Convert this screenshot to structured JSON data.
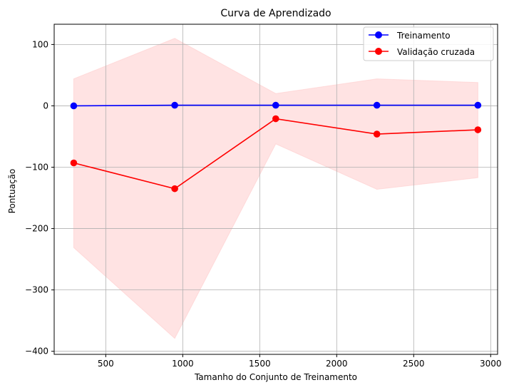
{
  "chart_data": {
    "type": "line",
    "title": "Curva de Aprendizado",
    "xlabel": "Tamanho do Conjunto de Treinamento",
    "ylabel": "Pontuação",
    "xlim": [
      165,
      3045
    ],
    "ylim": [
      -405,
      133
    ],
    "x_ticks": [
      500,
      1000,
      1500,
      2000,
      2500,
      3000
    ],
    "y_ticks": [
      -400,
      -300,
      -200,
      -100,
      0,
      100
    ],
    "grid": true,
    "legend_position": "top-right",
    "x": [
      292,
      948,
      1604,
      2261,
      2917
    ],
    "series": [
      {
        "name": "Treinamento",
        "color": "#0000ff",
        "values": [
          0,
          1,
          1,
          1,
          1
        ],
        "band_lower": [
          0,
          1,
          1,
          1,
          1
        ],
        "band_upper": [
          0,
          1,
          1,
          1,
          1
        ]
      },
      {
        "name": "Validação cruzada",
        "color": "#ff0000",
        "values": [
          -93,
          -135,
          -21,
          -46,
          -39
        ],
        "band_lower": [
          -231,
          -379,
          -62,
          -136,
          -117
        ],
        "band_upper": [
          44,
          110,
          20,
          44,
          38
        ]
      }
    ],
    "band_color": "#ffcccc"
  }
}
